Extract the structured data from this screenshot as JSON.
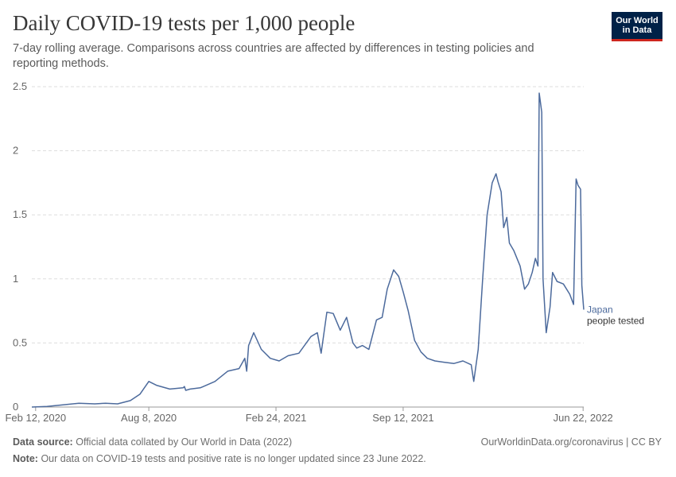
{
  "header": {
    "title": "Daily COVID-19 tests per 1,000 people",
    "subtitle": "7-day rolling average. Comparisons across countries are affected by differences in testing policies and reporting methods."
  },
  "logo": {
    "line1": "Our World",
    "line2": "in Data"
  },
  "footer": {
    "source_label": "Data source:",
    "source_text": "Official data collated by Our World in Data (2022)",
    "url_license": "OurWorldinData.org/coronavirus | CC BY",
    "note_label": "Note:",
    "note_text": "Our data on COVID-19 tests and positive rate is no longer updated since 23 June 2022."
  },
  "colors": {
    "line": "#4c6a9c",
    "grid": "#dddddd",
    "axis": "#999999",
    "text": "#666666"
  },
  "chart_data": {
    "type": "line",
    "title": "Daily COVID-19 tests per 1,000 people",
    "subtitle": "7-day rolling average. Comparisons across countries are affected by differences in testing policies and reporting methods.",
    "xlabel": "",
    "ylabel": "",
    "x_type": "date",
    "xlim": [
      "2020-02-06",
      "2022-06-23"
    ],
    "ylim": [
      0,
      2.5
    ],
    "y_ticks": [
      0,
      0.5,
      1,
      1.5,
      2,
      2.5
    ],
    "y_tick_labels": [
      "0",
      "0.5",
      "1",
      "1.5",
      "2",
      "2.5"
    ],
    "x_ticks": [
      "2020-02-12",
      "2020-08-08",
      "2021-02-24",
      "2021-09-12",
      "2022-06-22"
    ],
    "x_tick_labels": [
      "Feb 12, 2020",
      "Aug 8, 2020",
      "Feb 24, 2021",
      "Sep 12, 2021",
      "Jun 22, 2022"
    ],
    "grid": "horizontal dashed",
    "series": [
      {
        "name": "Japan",
        "label_line2": "people tested",
        "points": [
          [
            "2020-02-06",
            0.0
          ],
          [
            "2020-03-01",
            0.005
          ],
          [
            "2020-04-01",
            0.02
          ],
          [
            "2020-04-20",
            0.03
          ],
          [
            "2020-05-15",
            0.025
          ],
          [
            "2020-06-01",
            0.03
          ],
          [
            "2020-06-20",
            0.025
          ],
          [
            "2020-07-10",
            0.05
          ],
          [
            "2020-07-25",
            0.1
          ],
          [
            "2020-08-08",
            0.2
          ],
          [
            "2020-08-20",
            0.17
          ],
          [
            "2020-09-10",
            0.14
          ],
          [
            "2020-10-01",
            0.15
          ],
          [
            "2020-10-03",
            0.16
          ],
          [
            "2020-10-05",
            0.13
          ],
          [
            "2020-10-12",
            0.14
          ],
          [
            "2020-10-28",
            0.15
          ],
          [
            "2020-11-20",
            0.2
          ],
          [
            "2020-12-10",
            0.28
          ],
          [
            "2020-12-28",
            0.3
          ],
          [
            "2021-01-06",
            0.38
          ],
          [
            "2021-01-09",
            0.28
          ],
          [
            "2021-01-12",
            0.48
          ],
          [
            "2021-01-20",
            0.58
          ],
          [
            "2021-02-01",
            0.45
          ],
          [
            "2021-02-15",
            0.38
          ],
          [
            "2021-03-01",
            0.36
          ],
          [
            "2021-03-15",
            0.4
          ],
          [
            "2021-04-01",
            0.42
          ],
          [
            "2021-04-20",
            0.55
          ],
          [
            "2021-04-30",
            0.58
          ],
          [
            "2021-05-06",
            0.42
          ],
          [
            "2021-05-15",
            0.74
          ],
          [
            "2021-05-25",
            0.73
          ],
          [
            "2021-06-05",
            0.6
          ],
          [
            "2021-06-15",
            0.7
          ],
          [
            "2021-06-25",
            0.5
          ],
          [
            "2021-07-01",
            0.46
          ],
          [
            "2021-07-10",
            0.48
          ],
          [
            "2021-07-20",
            0.45
          ],
          [
            "2021-08-01",
            0.68
          ],
          [
            "2021-08-10",
            0.7
          ],
          [
            "2021-08-18",
            0.92
          ],
          [
            "2021-08-28",
            1.07
          ],
          [
            "2021-09-05",
            1.02
          ],
          [
            "2021-09-12",
            0.9
          ],
          [
            "2021-09-20",
            0.75
          ],
          [
            "2021-09-30",
            0.52
          ],
          [
            "2021-10-10",
            0.43
          ],
          [
            "2021-10-20",
            0.38
          ],
          [
            "2021-11-01",
            0.36
          ],
          [
            "2021-11-15",
            0.35
          ],
          [
            "2021-12-01",
            0.34
          ],
          [
            "2021-12-15",
            0.36
          ],
          [
            "2021-12-28",
            0.33
          ],
          [
            "2022-01-01",
            0.2
          ],
          [
            "2022-01-08",
            0.45
          ],
          [
            "2022-01-15",
            1.0
          ],
          [
            "2022-01-22",
            1.5
          ],
          [
            "2022-01-30",
            1.75
          ],
          [
            "2022-02-05",
            1.82
          ],
          [
            "2022-02-08",
            1.76
          ],
          [
            "2022-02-13",
            1.68
          ],
          [
            "2022-02-17",
            1.4
          ],
          [
            "2022-02-22",
            1.48
          ],
          [
            "2022-02-26",
            1.28
          ],
          [
            "2022-03-05",
            1.22
          ],
          [
            "2022-03-15",
            1.1
          ],
          [
            "2022-03-22",
            0.92
          ],
          [
            "2022-03-28",
            0.96
          ],
          [
            "2022-04-03",
            1.05
          ],
          [
            "2022-04-08",
            1.16
          ],
          [
            "2022-04-12",
            1.1
          ],
          [
            "2022-04-14",
            2.45
          ],
          [
            "2022-04-18",
            2.3
          ],
          [
            "2022-04-20",
            1.0
          ],
          [
            "2022-04-25",
            0.58
          ],
          [
            "2022-05-01",
            0.78
          ],
          [
            "2022-05-05",
            1.05
          ],
          [
            "2022-05-12",
            0.98
          ],
          [
            "2022-05-22",
            0.96
          ],
          [
            "2022-06-01",
            0.88
          ],
          [
            "2022-06-07",
            0.8
          ],
          [
            "2022-06-11",
            1.78
          ],
          [
            "2022-06-14",
            1.73
          ],
          [
            "2022-06-18",
            1.7
          ],
          [
            "2022-06-20",
            0.95
          ],
          [
            "2022-06-23",
            0.76
          ]
        ]
      }
    ]
  }
}
